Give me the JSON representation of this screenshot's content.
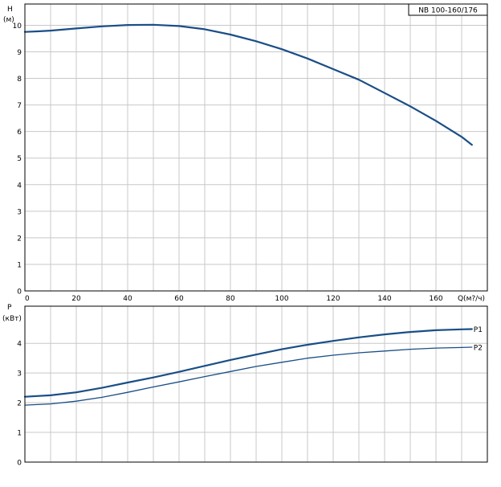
{
  "colors": {
    "curve": "#1a4e86",
    "grid": "#c8c8c8",
    "axis": "#000000",
    "background": "#ffffff"
  },
  "chart_data": [
    {
      "type": "line",
      "model_label": "NB 100-160/176",
      "ylabel_line1": "H",
      "ylabel_line2": "(м)",
      "xlabel": "Q(м?/ч)",
      "xlim": [
        0,
        180
      ],
      "ylim": [
        0,
        10.8
      ],
      "x_ticks": [
        0,
        20,
        40,
        60,
        80,
        100,
        120,
        140,
        160
      ],
      "y_ticks": [
        0,
        1,
        2,
        3,
        4,
        5,
        6,
        7,
        8,
        9,
        10
      ],
      "grid": true,
      "series": [
        {
          "x": [
            0,
            5,
            10,
            20,
            30,
            40,
            50,
            60,
            70,
            80,
            90,
            100,
            110,
            120,
            130,
            140,
            150,
            160,
            170,
            174
          ],
          "y": [
            9.75,
            9.77,
            9.8,
            9.88,
            9.96,
            10.01,
            10.02,
            9.97,
            9.85,
            9.65,
            9.4,
            9.1,
            8.75,
            8.35,
            7.95,
            7.45,
            6.95,
            6.4,
            5.8,
            5.5
          ]
        }
      ]
    },
    {
      "type": "line",
      "ylabel_line1": "P",
      "ylabel_line2": "(кВт)",
      "xlim": [
        0,
        180
      ],
      "ylim": [
        0,
        5.25
      ],
      "y_ticks": [
        0,
        1,
        2,
        3,
        4
      ],
      "grid": true,
      "series": [
        {
          "name": "P1",
          "x": [
            0,
            10,
            20,
            30,
            40,
            50,
            60,
            70,
            80,
            90,
            100,
            110,
            120,
            130,
            140,
            150,
            160,
            170,
            174
          ],
          "y": [
            2.2,
            2.25,
            2.35,
            2.5,
            2.68,
            2.85,
            3.04,
            3.24,
            3.44,
            3.62,
            3.8,
            3.95,
            4.08,
            4.2,
            4.3,
            4.38,
            4.44,
            4.47,
            4.48
          ]
        },
        {
          "name": "P2",
          "x": [
            0,
            10,
            20,
            30,
            40,
            50,
            60,
            70,
            80,
            90,
            100,
            110,
            120,
            130,
            140,
            150,
            160,
            170,
            174
          ],
          "y": [
            1.92,
            1.96,
            2.05,
            2.18,
            2.35,
            2.53,
            2.7,
            2.88,
            3.05,
            3.22,
            3.36,
            3.5,
            3.6,
            3.68,
            3.74,
            3.8,
            3.84,
            3.86,
            3.87
          ]
        }
      ]
    }
  ]
}
